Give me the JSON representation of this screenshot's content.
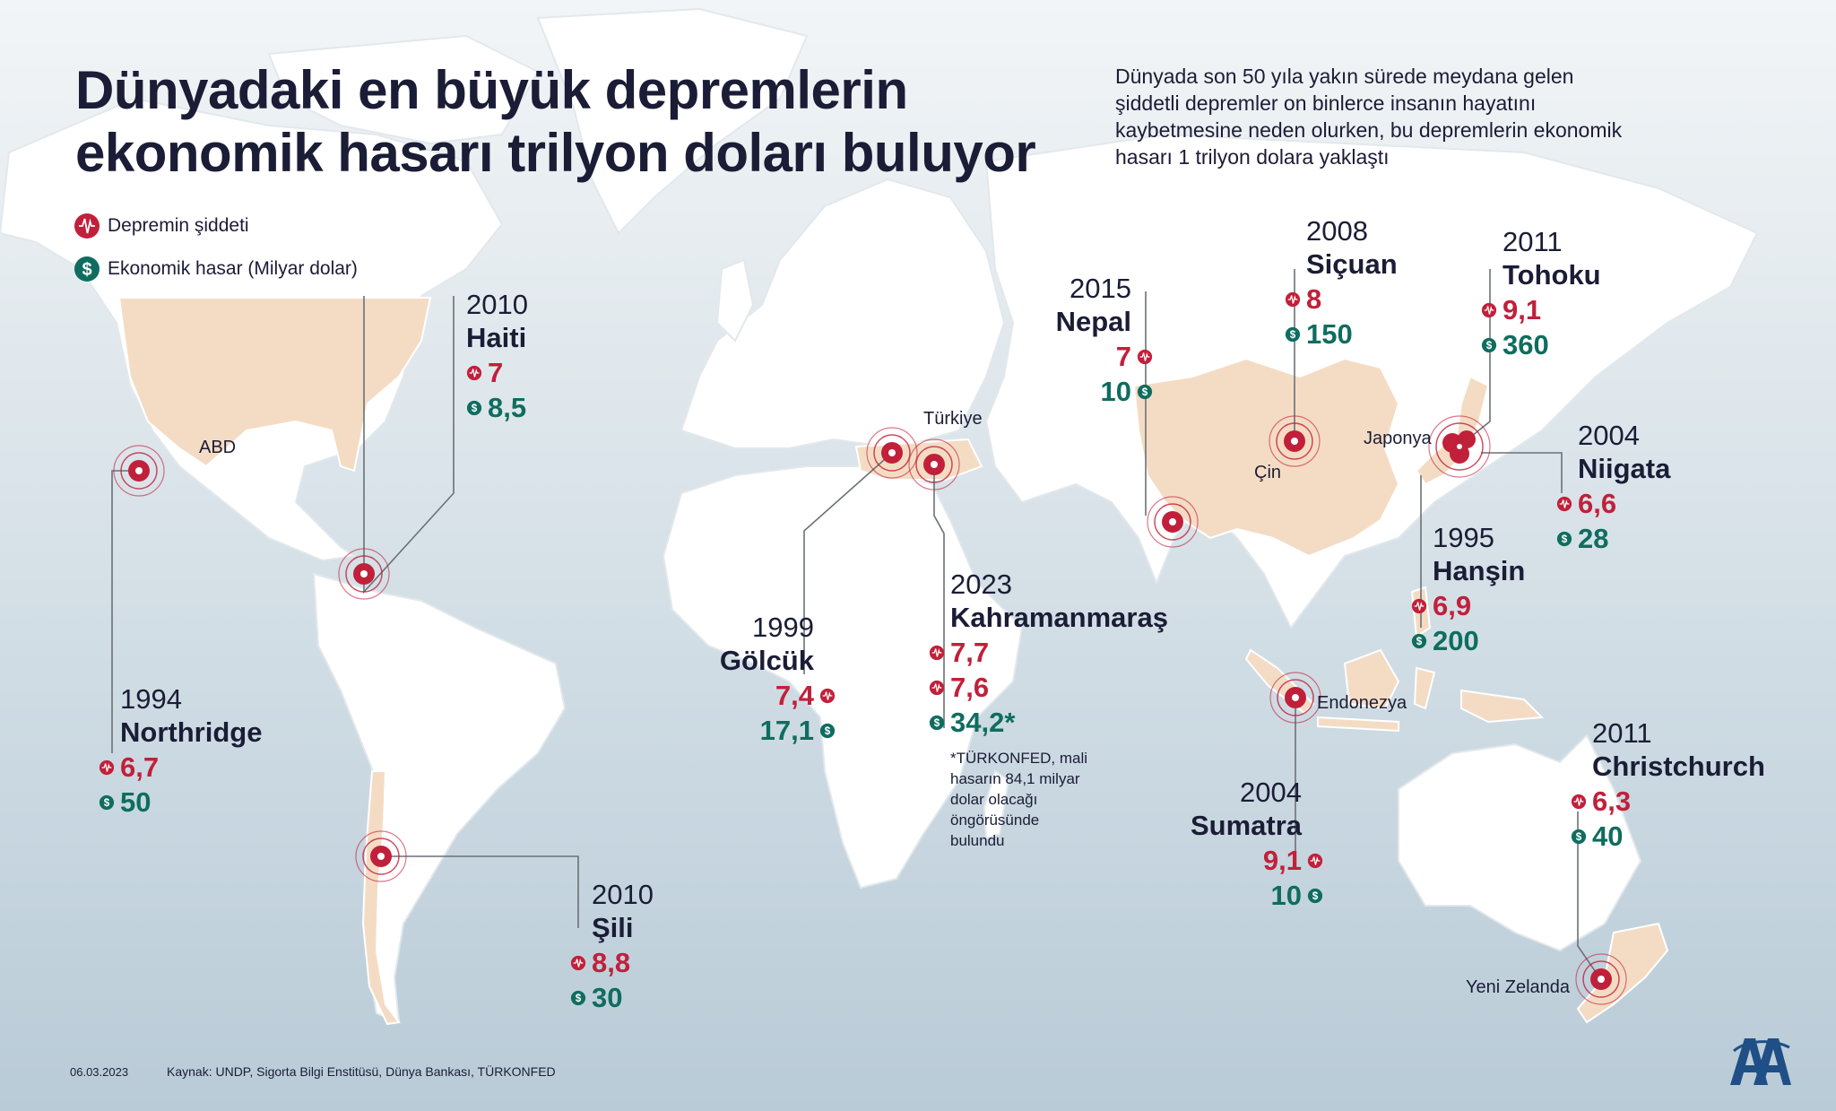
{
  "title": {
    "line1": "Dünyadaki en büyük depremlerin",
    "line2": "ekonomik hasarı trilyon doları buluyor"
  },
  "intro": {
    "line1": "Dünyada son 50 yıla yakın sürede meydana gelen",
    "line2": "şiddetli depremler on binlerce insanın hayatını",
    "line3": "kaybetmesine neden olurken, bu depremlerin ekonomik",
    "line4": "hasarı 1 trilyon dolara yaklaştı"
  },
  "legend": {
    "magnitude": "Depremin şiddeti",
    "damage": "Ekonomik hasar (Milyar dolar)"
  },
  "colors": {
    "magnitude": "#c1203a",
    "damage": "#0f6d5f",
    "highlight_country": "#f4dcc4",
    "text": "#1b1d36"
  },
  "icons": {
    "magnitude": "seismograph-icon",
    "damage": "dollar-icon",
    "epicenter": "epicenter-target-icon"
  },
  "countries": {
    "usa": "ABD",
    "turkey": "Türkiye",
    "china": "Çin",
    "japan": "Japonya",
    "indonesia": "Endonezya",
    "new_zealand": "Yeni Zelanda"
  },
  "quakes": [
    {
      "id": "haiti",
      "year": "2010",
      "name": "Haiti",
      "magnitude": "7",
      "damage": "8,5"
    },
    {
      "id": "northridge",
      "year": "1994",
      "name": "Northridge",
      "magnitude": "6,7",
      "damage": "50"
    },
    {
      "id": "sili",
      "year": "2010",
      "name": "Şili",
      "magnitude": "8,8",
      "damage": "30"
    },
    {
      "id": "golcuk",
      "year": "1999",
      "name": "Gölcük",
      "magnitude": "7,4",
      "damage": "17,1"
    },
    {
      "id": "kahramanmaras",
      "year": "2023",
      "name": "Kahramanmaraş",
      "magnitude": "7,7",
      "magnitude2": "7,6",
      "damage": "34,2*"
    },
    {
      "id": "nepal",
      "year": "2015",
      "name": "Nepal",
      "magnitude": "7",
      "damage": "10"
    },
    {
      "id": "sicuan",
      "year": "2008",
      "name": "Siçuan",
      "magnitude": "8",
      "damage": "150"
    },
    {
      "id": "tohoku",
      "year": "2011",
      "name": "Tohoku",
      "magnitude": "9,1",
      "damage": "360"
    },
    {
      "id": "niigata",
      "year": "2004",
      "name": "Niigata",
      "magnitude": "6,6",
      "damage": "28"
    },
    {
      "id": "hansin",
      "year": "1995",
      "name": "Hanşin",
      "magnitude": "6,9",
      "damage": "200"
    },
    {
      "id": "sumatra",
      "year": "2004",
      "name": "Sumatra",
      "magnitude": "9,1",
      "damage": "10"
    },
    {
      "id": "christchurch",
      "year": "2011",
      "name": "Christchurch",
      "magnitude": "6,3",
      "damage": "40"
    }
  ],
  "note": {
    "line1": "*TÜRKONFED, mali",
    "line2": "hasarın 84,1 milyar",
    "line3": "dolar olacağı",
    "line4": "öngörüsünde",
    "line5": "bulundu"
  },
  "footer": {
    "date": "06.03.2023",
    "source": "Kaynak: UNDP, Sigorta Bilgi Enstitüsü, Dünya Bankası, TÜRKONFED"
  },
  "logo": {
    "text": "AA",
    "brand_color": "#1f4f86"
  }
}
